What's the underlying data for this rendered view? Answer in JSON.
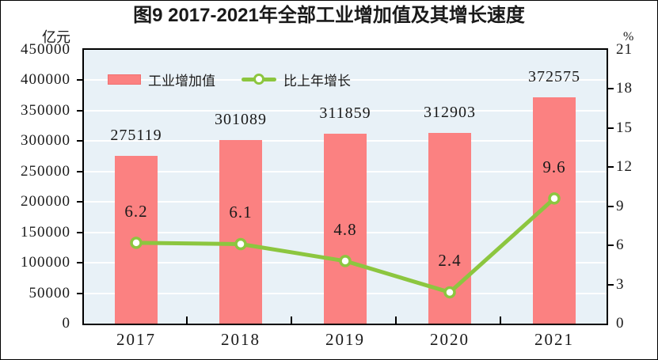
{
  "figure": {
    "title": "图9  2017-2021年全部工业增加值及其增长速度",
    "left_axis_unit": "亿元",
    "right_axis_unit": "%"
  },
  "legend": {
    "bar_label": "工业增加值",
    "line_label": "比上年增长",
    "bar_swatch_icon": "bar-swatch",
    "line_swatch_icon": "line-marker-swatch"
  },
  "colors": {
    "bar": "#fb8181",
    "line": "#8cc63f",
    "marker_fill": "#ffffff",
    "plot_bg": "#e8f1f7",
    "grid": "#ffffff",
    "text": "#1a1a1a",
    "frame": "#000000"
  },
  "chart_data": {
    "type": "bar",
    "title": "图9  2017-2021年全部工业增加值及其增长速度",
    "categories": [
      "2017",
      "2018",
      "2019",
      "2020",
      "2021"
    ],
    "series": [
      {
        "name": "工业增加值",
        "type": "bar",
        "axis": "left",
        "unit": "亿元",
        "values": [
          275119,
          301089,
          311859,
          312903,
          372575
        ]
      },
      {
        "name": "比上年增长",
        "type": "line",
        "axis": "right",
        "unit": "%",
        "values": [
          6.2,
          6.1,
          4.8,
          2.4,
          9.6
        ]
      }
    ],
    "left_axis": {
      "label": "亿元",
      "min": 0,
      "max": 450000,
      "step": 50000
    },
    "right_axis": {
      "label": "%",
      "min": 0,
      "max": 21,
      "step": 3
    },
    "grid": true,
    "legend_position": "top-left-inside"
  }
}
